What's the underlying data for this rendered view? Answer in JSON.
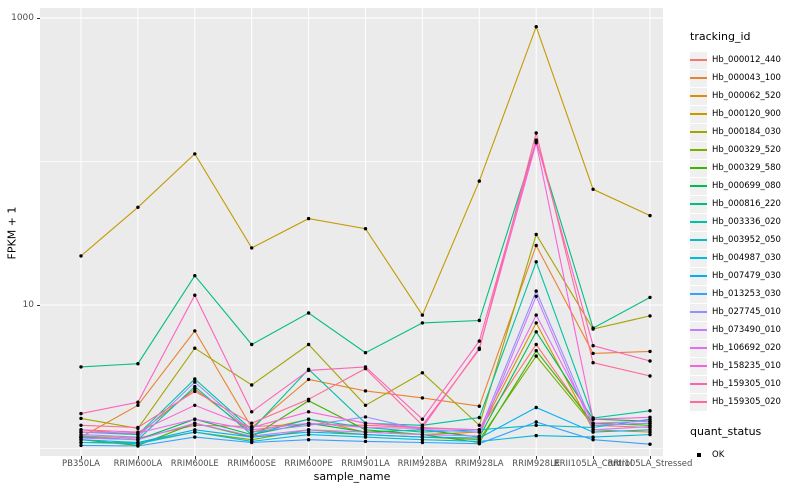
{
  "figure": {
    "y_axis_title": "FPKM + 1",
    "x_axis_title": "sample_name",
    "legend": {
      "tracking_title": "tracking_id",
      "quant_title": "quant_status",
      "quant_entries": [
        {
          "label": "OK",
          "marker": "black-square"
        }
      ]
    },
    "colors": {
      "panel_background": "#EBEBEB",
      "gridline": "#FFFFFF",
      "tick_text": "#4D4D4D",
      "point": "#000000"
    }
  },
  "chart_data": {
    "type": "line",
    "title": "",
    "xlabel": "sample_name",
    "ylabel": "FPKM + 1",
    "y_scale": "log10",
    "ylim": [
      0.886,
      1175
    ],
    "y_ticks": [
      {
        "value": 1000,
        "label": "1000"
      },
      {
        "value": 10,
        "label": "10"
      }
    ],
    "y_major_gridlines": [
      10,
      1000
    ],
    "y_minor_gridlines": [
      1,
      100
    ],
    "grid": "on",
    "legend_position": "right",
    "point_marker": "black dot (quant_status OK)",
    "categories": [
      "PB350LA",
      "RRIM600LA",
      "RRIM600LE",
      "RRIM600SE",
      "RRIM600PE",
      "RRIM901LA",
      "RRIM928BA",
      "RRIM928LA",
      "RRIM928LE",
      "RRII105LA_Control",
      "RRII105LA_Stressed"
    ],
    "series": [
      {
        "name": "Hb_000012_440",
        "color": "#F8766D",
        "values": [
          1.22,
          1.18,
          1.45,
          1.42,
          1.48,
          1.45,
          1.4,
          1.35,
          5.3,
          1.45,
          1.4
        ]
      },
      {
        "name": "Hb_000043_100",
        "color": "#EA8331",
        "values": [
          1.2,
          2.0,
          6.6,
          1.4,
          3.03,
          2.52,
          2.25,
          1.97,
          26,
          4.6,
          4.75
        ]
      },
      {
        "name": "Hb_000062_520",
        "color": "#D89000",
        "values": [
          1.35,
          1.25,
          2.6,
          1.3,
          1.6,
          1.3,
          1.25,
          1.3,
          7.5,
          1.35,
          1.3
        ]
      },
      {
        "name": "Hb_000120_900",
        "color": "#C49A00",
        "values": [
          22,
          48,
          113,
          25,
          40,
          34,
          8.5,
          73,
          870,
          64,
          42
        ]
      },
      {
        "name": "Hb_000184_030",
        "color": "#A3A500",
        "values": [
          1.62,
          1.38,
          5.0,
          2.77,
          5.3,
          2.0,
          3.37,
          1.45,
          31,
          6.8,
          8.4
        ]
      },
      {
        "name": "Hb_000329_520",
        "color": "#7CAE00",
        "values": [
          1.1,
          1.1,
          1.3,
          1.15,
          1.35,
          1.25,
          1.2,
          1.15,
          4.4,
          1.45,
          1.5
        ]
      },
      {
        "name": "Hb_000329_580",
        "color": "#39B600",
        "values": [
          1.15,
          1.05,
          1.5,
          1.2,
          2.15,
          1.35,
          1.25,
          1.1,
          4.8,
          1.5,
          1.45
        ]
      },
      {
        "name": "Hb_000699_080",
        "color": "#00BB4E",
        "values": [
          1.2,
          1.15,
          1.6,
          1.25,
          1.5,
          1.3,
          1.35,
          1.2,
          6.5,
          1.6,
          1.55
        ]
      },
      {
        "name": "Hb_000816_220",
        "color": "#00BF7D",
        "values": [
          3.7,
          3.9,
          16,
          5.3,
          8.8,
          4.65,
          7.5,
          7.8,
          139,
          6.9,
          11.3
        ]
      },
      {
        "name": "Hb_003336_020",
        "color": "#00C1A3",
        "values": [
          1.3,
          1.25,
          3.05,
          1.35,
          3.56,
          1.5,
          1.45,
          1.64,
          20,
          1.63,
          1.83
        ]
      },
      {
        "name": "Hb_003952_050",
        "color": "#00BFC4",
        "values": [
          1.2,
          1.15,
          2.7,
          1.25,
          1.6,
          1.4,
          1.3,
          1.35,
          1.45,
          1.4,
          1.6
        ]
      },
      {
        "name": "Hb_004987_030",
        "color": "#00BAE0",
        "values": [
          1.1,
          1.08,
          1.3,
          1.12,
          1.25,
          1.2,
          1.15,
          1.12,
          1.23,
          1.2,
          1.25
        ]
      },
      {
        "name": "Hb_007479_030",
        "color": "#00B0F6",
        "values": [
          1.15,
          1.1,
          1.35,
          1.2,
          1.3,
          1.25,
          1.2,
          1.18,
          1.93,
          1.3,
          1.35
        ]
      },
      {
        "name": "Hb_013253_030",
        "color": "#35A2FF",
        "values": [
          1.05,
          1.04,
          1.2,
          1.1,
          1.15,
          1.12,
          1.1,
          1.08,
          1.53,
          1.15,
          1.07
        ]
      },
      {
        "name": "Hb_027745_010",
        "color": "#9590FF",
        "values": [
          1.25,
          1.2,
          2.9,
          1.3,
          1.45,
          1.66,
          1.35,
          1.3,
          12.5,
          1.45,
          1.5
        ]
      },
      {
        "name": "Hb_073490_010",
        "color": "#C77CFF",
        "values": [
          1.18,
          1.15,
          1.5,
          1.22,
          1.35,
          1.3,
          1.25,
          1.22,
          11.5,
          1.35,
          1.42
        ]
      },
      {
        "name": "Hb_106692_020",
        "color": "#E76BF3",
        "values": [
          1.3,
          1.28,
          1.6,
          1.35,
          1.5,
          1.4,
          1.38,
          1.35,
          8.5,
          1.5,
          1.55
        ]
      },
      {
        "name": "Hb_158235_010",
        "color": "#FA62DB",
        "values": [
          1.35,
          1.3,
          2.0,
          1.4,
          1.8,
          1.5,
          1.4,
          5.0,
          135,
          1.6,
          1.65
        ]
      },
      {
        "name": "Hb_159305_010",
        "color": "#FF62BC",
        "values": [
          1.75,
          2.1,
          11.7,
          1.8,
          3.5,
          3.7,
          1.6,
          5.6,
          141,
          5.2,
          4.07
        ]
      },
      {
        "name": "Hb_159305_020",
        "color": "#FF6A98",
        "values": [
          1.45,
          1.4,
          2.5,
          1.5,
          2.2,
          3.6,
          1.45,
          4.9,
          158,
          3.96,
          3.2
        ]
      }
    ]
  }
}
